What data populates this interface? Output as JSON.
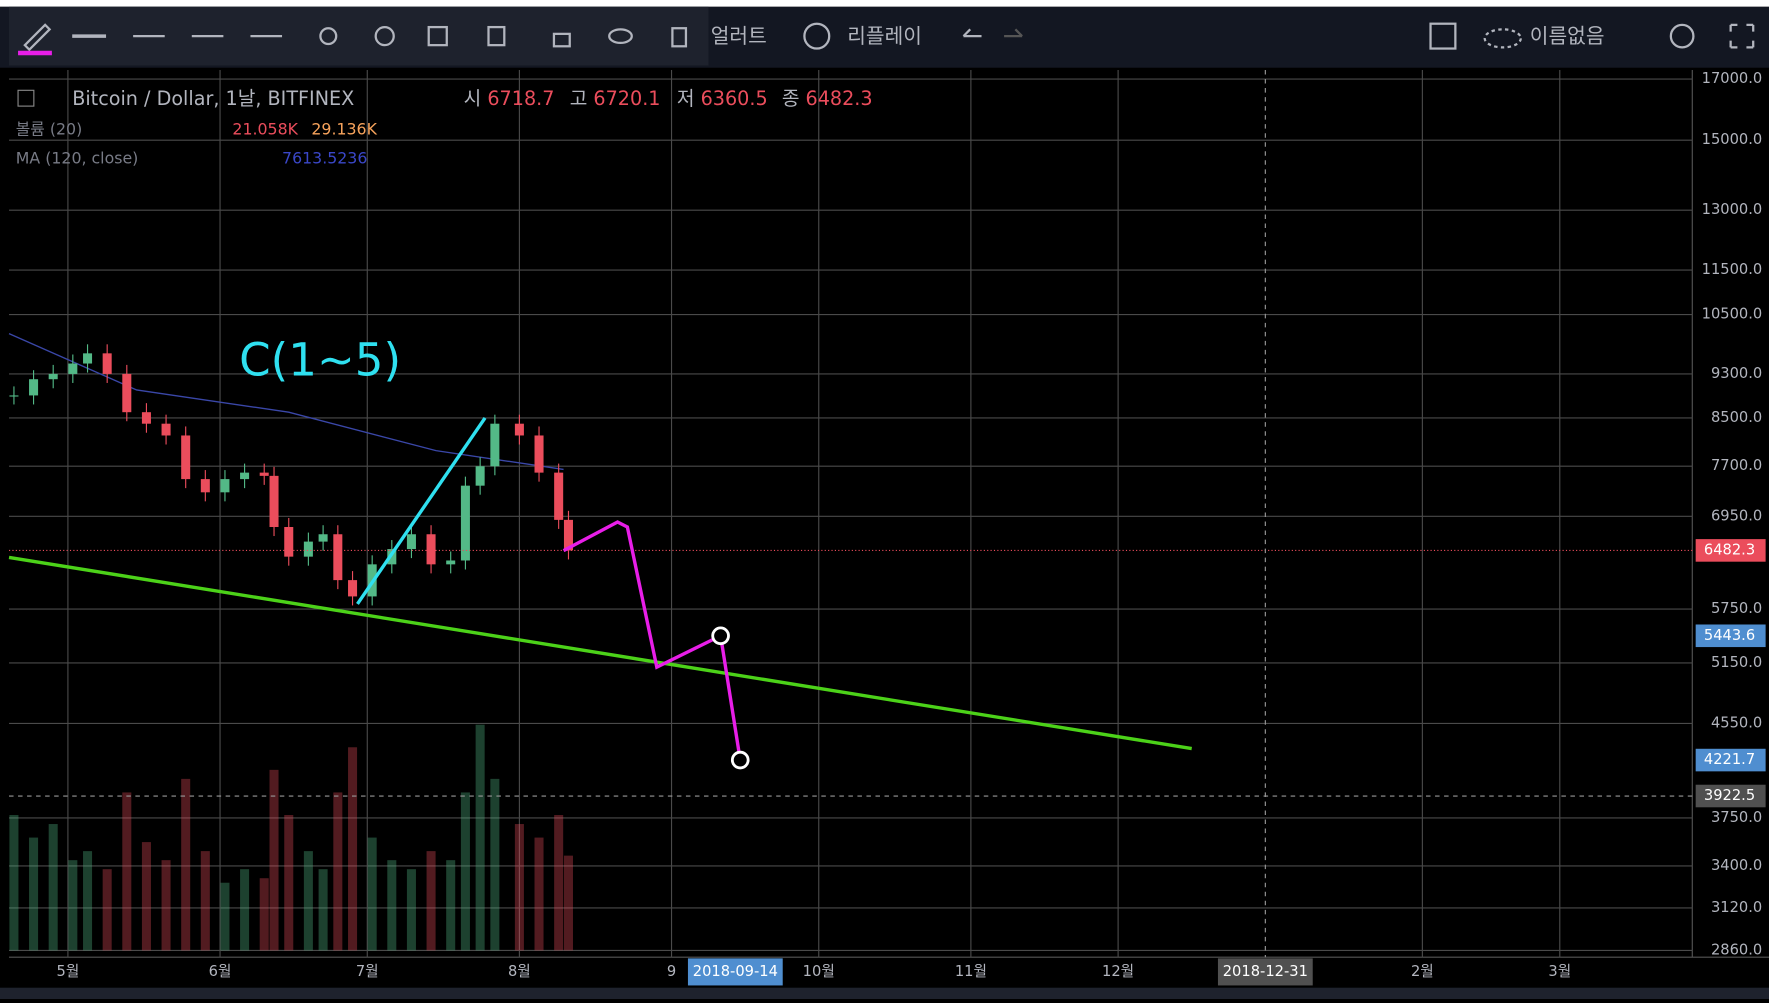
{
  "toolbar": {
    "alerts": "얼러트",
    "replay": "리플레이",
    "layout_name": "이름없음"
  },
  "legend": {
    "symbol": "Bitcoin / Dollar, 1날, BITFINEX",
    "open_label": "시",
    "open": "6718.7",
    "high_label": "고",
    "high": "6720.1",
    "low_label": "저",
    "low": "6360.5",
    "close_label": "종",
    "close": "6482.3",
    "volume": "볼륨 (20)",
    "volume_value": "21.058K",
    "volume_ma": "29.136K",
    "ma": "MA (120, close)",
    "ma_value": "7613.5236"
  },
  "chart_data": {
    "type": "candlestick",
    "log_scale": true,
    "grid": true,
    "xlim": [
      "2018-04-19",
      "2019-03-28"
    ],
    "xticks": [
      {
        "value": "2018-05-01",
        "label": "5월"
      },
      {
        "value": "2018-06-01",
        "label": "6월"
      },
      {
        "value": "2018-07-01",
        "label": "7월"
      },
      {
        "value": "2018-08-01",
        "label": "8월"
      },
      {
        "value": "2018-09-01",
        "label": "9"
      },
      {
        "value": "2018-10-01",
        "label": "10월"
      },
      {
        "value": "2018-11-01",
        "label": "11월"
      },
      {
        "value": "2018-12-01",
        "label": "12월"
      },
      {
        "value": "2019-02-01",
        "label": "2월"
      },
      {
        "value": "2019-03-01",
        "label": "3월"
      }
    ],
    "ylim": [
      2860,
      17000
    ],
    "yticks": [
      {
        "value": 17000,
        "label": "17000.0"
      },
      {
        "value": 15000,
        "label": "15000.0"
      },
      {
        "value": 13000,
        "label": "13000.0"
      },
      {
        "value": 11500,
        "label": "11500.0"
      },
      {
        "value": 10500,
        "label": "10500.0"
      },
      {
        "value": 9300,
        "label": "9300.0"
      },
      {
        "value": 8500,
        "label": "8500.0"
      },
      {
        "value": 7700,
        "label": "7700.0"
      },
      {
        "value": 6950,
        "label": "6950.0"
      },
      {
        "value": 5750,
        "label": "5750.0"
      },
      {
        "value": 5150,
        "label": "5150.0"
      },
      {
        "value": 4550,
        "label": "4550.0"
      },
      {
        "value": 3750,
        "label": "3750.0"
      },
      {
        "value": 3400,
        "label": "3400.0"
      },
      {
        "value": 3120,
        "label": "3120.0"
      },
      {
        "value": 2860,
        "label": "2860.0"
      }
    ],
    "x": [
      "2018-04-20",
      "2018-04-24",
      "2018-04-28",
      "2018-05-02",
      "2018-05-05",
      "2018-05-09",
      "2018-05-13",
      "2018-05-17",
      "2018-05-21",
      "2018-05-25",
      "2018-05-29",
      "2018-06-02",
      "2018-06-06",
      "2018-06-10",
      "2018-06-12",
      "2018-06-15",
      "2018-06-19",
      "2018-06-22",
      "2018-06-25",
      "2018-06-28",
      "2018-07-02",
      "2018-07-06",
      "2018-07-10",
      "2018-07-14",
      "2018-07-18",
      "2018-07-21",
      "2018-07-24",
      "2018-07-27",
      "2018-08-01",
      "2018-08-05",
      "2018-08-09",
      "2018-08-11"
    ],
    "close": [
      8900,
      9200,
      9300,
      9500,
      9700,
      9300,
      8600,
      8400,
      8200,
      7500,
      7300,
      7500,
      7600,
      7550,
      6800,
      6400,
      6600,
      6700,
      6100,
      5900,
      6300,
      6500,
      6700,
      6300,
      6350,
      7400,
      7700,
      8400,
      8200,
      7600,
      6900,
      6482.3
    ],
    "volume": [
      30,
      25,
      28,
      20,
      22,
      18,
      35,
      24,
      20,
      38,
      22,
      15,
      18,
      16,
      40,
      30,
      22,
      18,
      35,
      45,
      25,
      20,
      18,
      22,
      20,
      35,
      50,
      38,
      28,
      25,
      30,
      21
    ],
    "volume_lim": [
      0,
      50
    ],
    "up_color": "#53b987",
    "down_color": "#eb4d5c",
    "ma": {
      "color": "#3a47a8",
      "x": [
        "2018-04-19",
        "2018-05-15",
        "2018-06-15",
        "2018-07-15",
        "2018-08-10"
      ],
      "values": [
        10100,
        9000,
        8600,
        7950,
        7650
      ]
    },
    "annotation": {
      "text": "C(1~5)",
      "color": "#2fe0f0"
    },
    "drawings": [
      {
        "kind": "line",
        "color": "#4cd219",
        "points": [
          [
            "2018-04-19",
            6390
          ],
          [
            "2018-12-16",
            4322
          ]
        ]
      },
      {
        "kind": "line",
        "color": "#2fe0f0",
        "points": [
          [
            "2018-06-29",
            5810
          ],
          [
            "2018-07-25",
            8500
          ]
        ]
      },
      {
        "kind": "line",
        "color": "#e81ee8",
        "points": [
          [
            "2018-08-10",
            6480
          ],
          [
            "2018-08-21",
            6870
          ],
          [
            "2018-08-23",
            6800
          ],
          [
            "2018-08-29",
            5105
          ],
          [
            "2018-09-11",
            5443.6
          ],
          [
            "2018-09-15",
            4221.7
          ]
        ]
      },
      {
        "kind": "circle",
        "color": "#ffffff",
        "points": [
          [
            "2018-09-11",
            5443.6
          ]
        ]
      },
      {
        "kind": "circle",
        "color": "#ffffff",
        "points": [
          [
            "2018-09-15",
            4221.7
          ]
        ]
      }
    ],
    "price_labels": [
      {
        "value": 6482.3,
        "color": "#eb4d5c"
      },
      {
        "value": 5443.6,
        "color": "#4f8ed0"
      },
      {
        "value": 4221.7,
        "color": "#4f8ed0"
      },
      {
        "value": 3922.5,
        "color": "#505050"
      }
    ],
    "time_labels": [
      {
        "value": "2018-09-14",
        "color": "#4f8ed0"
      },
      {
        "value": "2018-12-31",
        "color": "#505050"
      }
    ]
  }
}
